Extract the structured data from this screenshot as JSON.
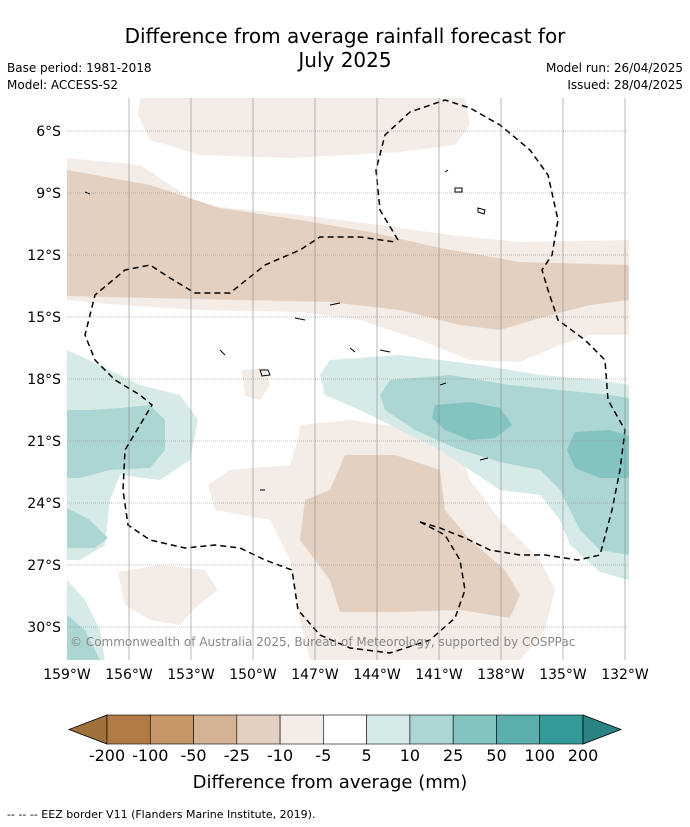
{
  "title_line1": "Difference from average rainfall forecast for",
  "title_line2": "July 2025",
  "base_period": "Base period: 1981-2018",
  "model": "Model: ACCESS-S2",
  "model_run": "Model run: 26/04/2025",
  "issued": "Issued: 28/04/2025",
  "copyright": "© Commonwealth of Australia 2025, Bureau of Meteorology, supported by COSPPac",
  "lat_ticks": [
    "6°S",
    "9°S",
    "12°S",
    "15°S",
    "18°S",
    "21°S",
    "24°S",
    "27°S",
    "30°S"
  ],
  "lon_ticks": [
    "159°W",
    "156°W",
    "153°W",
    "150°W",
    "147°W",
    "144°W",
    "141°W",
    "138°W",
    "135°W",
    "132°W"
  ],
  "colorbar": {
    "labels": [
      "-200",
      "-100",
      "-50",
      "-25",
      "-10",
      "-5",
      "5",
      "10",
      "25",
      "50",
      "100",
      "200"
    ],
    "colors": [
      "#a0703a",
      "#b07a44",
      "#c49668",
      "#d4b394",
      "#e4d0c0",
      "#f4ece6",
      "#ffffff",
      "#d6ebe8",
      "#acd6d3",
      "#83c3c0",
      "#5aaeab",
      "#35999a",
      "#2a8283"
    ],
    "title": "Difference from average (mm)"
  },
  "footer": "-- -- -- EEZ border V11 (Flanders Marine Institute, 2019)."
}
